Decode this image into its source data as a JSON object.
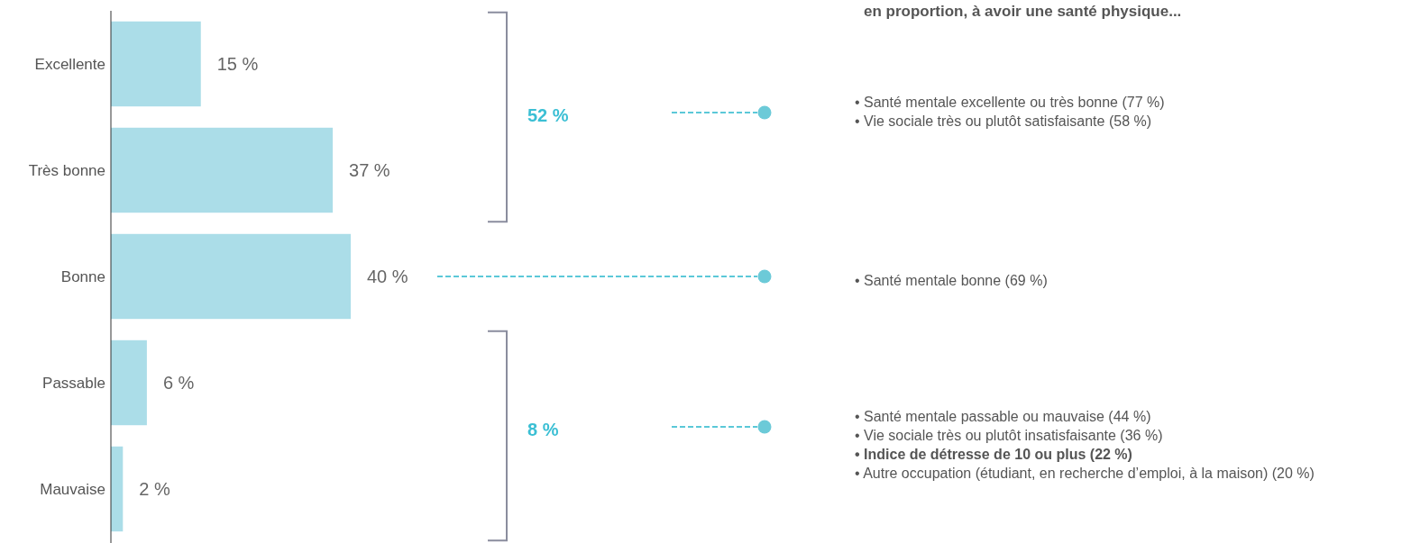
{
  "chart_data": {
    "type": "bar",
    "orientation": "horizontal",
    "categories": [
      "Excellente",
      "Très bonne",
      "Bonne",
      "Passable",
      "Mauvaise"
    ],
    "values": [
      15,
      37,
      40,
      6,
      2
    ],
    "value_labels": [
      "15 %",
      "37 %",
      "40 %",
      "6 %",
      "2 %"
    ],
    "color": "#abdde8",
    "tick_labels": "y",
    "annotations": [
      "en proportion, à avoir une santé physique...",
      "52 %",
      "8 %",
      "• Santé mentale excellente ou très bonne (77 %)",
      "• Vie sociale très ou plutôt satisfaisante (58 %)",
      "• Santé mentale bonne (69 %)",
      "• Santé mentale passable ou mauvaise (44 %)",
      "• Vie sociale très ou plutôt insatisfaisante (36 %)",
      "• Indice de détresse de 10 ou plus (22 %)",
      "• Autre occupation (étudiant, en recherche d’emploi, à la maison) (20 %)"
    ]
  }
}
